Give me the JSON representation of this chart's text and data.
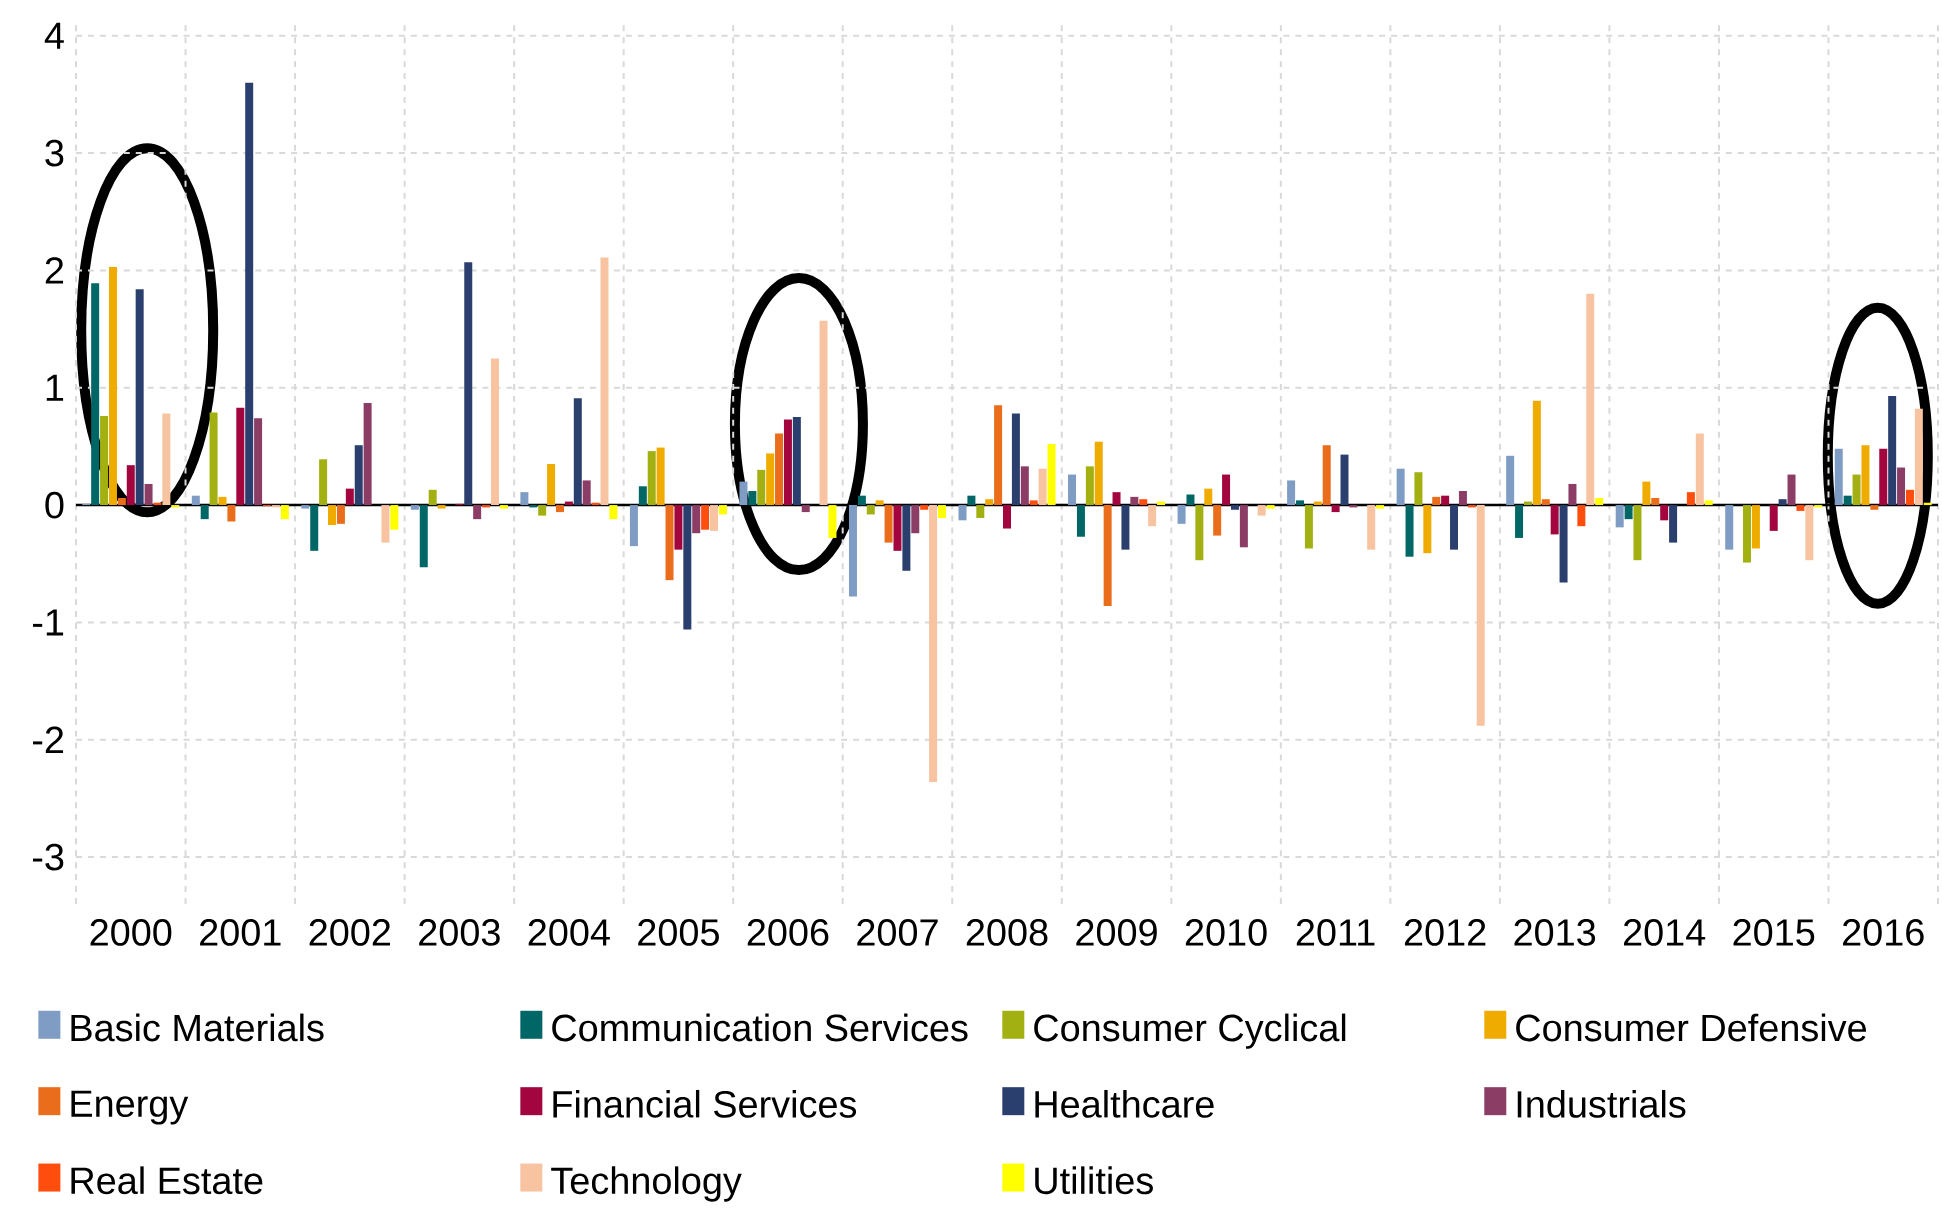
{
  "chart_data": {
    "type": "bar",
    "categories": [
      "2000",
      "2001",
      "2002",
      "2003",
      "2004",
      "2005",
      "2006",
      "2007",
      "2008",
      "2009",
      "2010",
      "2011",
      "2012",
      "2013",
      "2014",
      "2015",
      "2016"
    ],
    "series": [
      {
        "name": "Basic Materials",
        "color": "#7f9cc4",
        "values": [
          0.01,
          0.08,
          -0.03,
          -0.04,
          0.11,
          -0.35,
          0.2,
          -0.78,
          -0.13,
          0.26,
          -0.16,
          0.21,
          0.31,
          0.42,
          -0.19,
          -0.38,
          0.48
        ]
      },
      {
        "name": "Communication Services",
        "color": "#006666",
        "values": [
          1.89,
          -0.12,
          -0.39,
          -0.53,
          -0.02,
          0.16,
          0.12,
          0.08,
          0.08,
          -0.27,
          0.09,
          0.04,
          -0.44,
          -0.28,
          -0.12,
          0.0,
          0.08
        ]
      },
      {
        "name": "Consumer Cyclical",
        "color": "#a3b011",
        "values": [
          0.76,
          0.79,
          0.39,
          0.13,
          -0.09,
          0.46,
          0.3,
          -0.08,
          -0.11,
          0.33,
          -0.47,
          -0.37,
          0.28,
          0.03,
          -0.47,
          -0.49,
          0.26
        ]
      },
      {
        "name": "Consumer Defensive",
        "color": "#f0ab00",
        "values": [
          2.03,
          0.07,
          -0.17,
          -0.03,
          0.35,
          0.49,
          0.44,
          0.04,
          0.05,
          0.54,
          0.14,
          0.03,
          -0.41,
          0.89,
          0.2,
          -0.37,
          0.51
        ]
      },
      {
        "name": "Energy",
        "color": "#e96d1a",
        "values": [
          0.06,
          -0.14,
          -0.16,
          0.0,
          -0.06,
          -0.64,
          0.61,
          -0.32,
          0.85,
          -0.86,
          -0.26,
          0.51,
          0.07,
          0.05,
          0.06,
          0.0,
          -0.04
        ]
      },
      {
        "name": "Financial Services",
        "color": "#a3063f",
        "values": [
          0.34,
          0.83,
          0.14,
          0.01,
          0.03,
          -0.38,
          0.73,
          -0.39,
          -0.2,
          0.11,
          0.26,
          -0.06,
          0.08,
          -0.25,
          -0.13,
          -0.22,
          0.48
        ]
      },
      {
        "name": "Healthcare",
        "color": "#2b3f6f",
        "values": [
          1.84,
          3.6,
          0.51,
          2.07,
          0.91,
          -1.06,
          0.75,
          -0.56,
          0.78,
          -0.38,
          -0.04,
          0.43,
          -0.38,
          -0.66,
          -0.32,
          0.05,
          0.93
        ]
      },
      {
        "name": "Industrials",
        "color": "#8c3d66",
        "values": [
          0.18,
          0.74,
          0.87,
          -0.12,
          0.21,
          -0.24,
          -0.06,
          -0.24,
          0.33,
          0.07,
          -0.36,
          -0.02,
          0.12,
          0.18,
          0.0,
          0.26,
          0.32
        ]
      },
      {
        "name": "Real Estate",
        "color": "#ff4d0d",
        "values": [
          0.02,
          -0.01,
          0.0,
          -0.02,
          0.02,
          -0.21,
          0.0,
          -0.04,
          0.04,
          0.05,
          0.0,
          0.0,
          -0.02,
          -0.18,
          0.11,
          -0.05,
          0.13
        ]
      },
      {
        "name": "Technology",
        "color": "#f8c3a0",
        "values": [
          0.78,
          -0.02,
          -0.32,
          1.25,
          2.11,
          -0.22,
          1.57,
          -2.36,
          0.31,
          -0.18,
          -0.09,
          -0.38,
          -1.88,
          1.8,
          0.61,
          -0.47,
          0.82
        ]
      },
      {
        "name": "Utilities",
        "color": "#ffff00",
        "values": [
          -0.02,
          -0.12,
          -0.21,
          -0.03,
          -0.12,
          -0.08,
          -0.28,
          -0.11,
          0.52,
          0.03,
          -0.03,
          -0.03,
          0.0,
          0.06,
          0.04,
          -0.02,
          0.02
        ]
      }
    ],
    "ylim": [
      -3.4,
      4.1
    ],
    "yticks": [
      -3,
      -2,
      -1,
      0,
      1,
      2,
      3,
      4
    ],
    "grid": true,
    "legend": "bottom"
  }
}
